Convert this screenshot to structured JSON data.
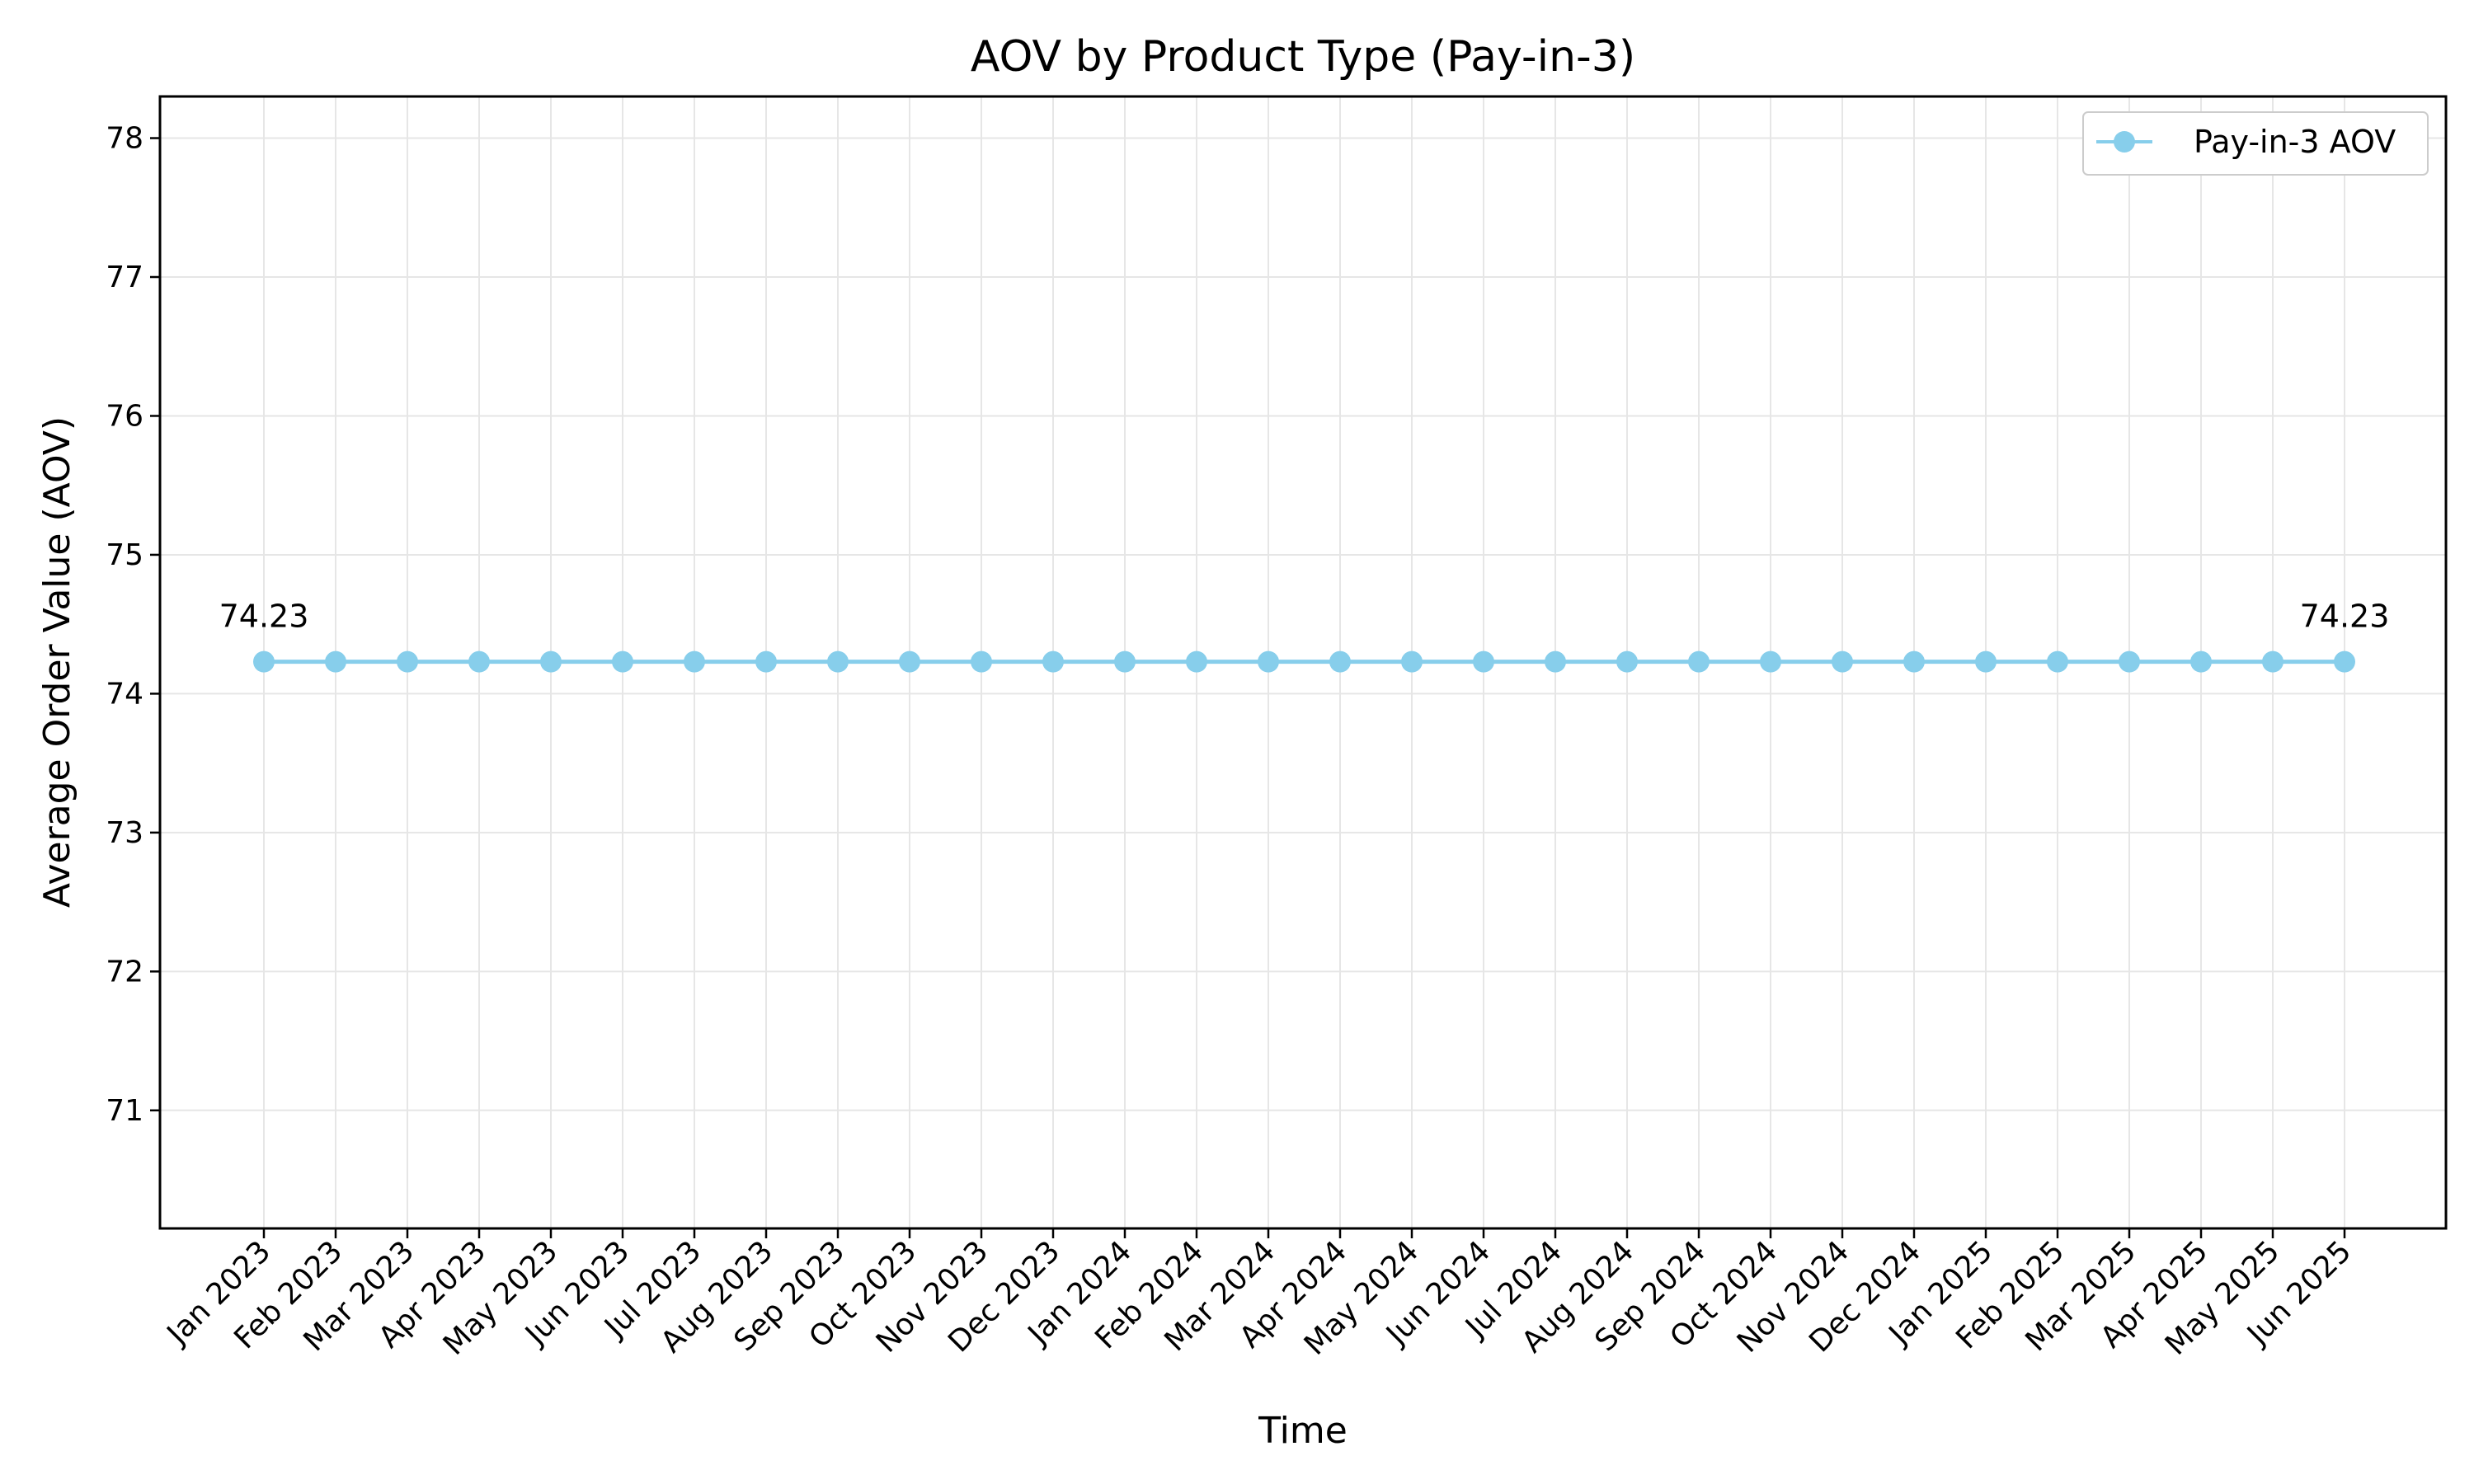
{
  "chart_data": {
    "type": "line",
    "title": "AOV by Product Type (Pay-in-3)",
    "xlabel": "Time",
    "ylabel": "Average Order Value (AOV)",
    "categories": [
      "Jan 2023",
      "Feb 2023",
      "Mar 2023",
      "Apr 2023",
      "May 2023",
      "Jun 2023",
      "Jul 2023",
      "Aug 2023",
      "Sep 2023",
      "Oct 2023",
      "Nov 2023",
      "Dec 2023",
      "Jan 2024",
      "Feb 2024",
      "Mar 2024",
      "Apr 2024",
      "May 2024",
      "Jun 2024",
      "Jul 2024",
      "Aug 2024",
      "Sep 2024",
      "Oct 2024",
      "Nov 2024",
      "Dec 2024",
      "Jan 2025",
      "Feb 2025",
      "Mar 2025",
      "Apr 2025",
      "May 2025",
      "Jun 2025"
    ],
    "series": [
      {
        "name": "Pay-in-3 AOV",
        "color": "#87CEEB",
        "values": [
          74.23,
          74.23,
          74.23,
          74.23,
          74.23,
          74.23,
          74.23,
          74.23,
          74.23,
          74.23,
          74.23,
          74.23,
          74.23,
          74.23,
          74.23,
          74.23,
          74.23,
          74.23,
          74.23,
          74.23,
          74.23,
          74.23,
          74.23,
          74.23,
          74.23,
          74.23,
          74.23,
          74.23,
          74.23,
          74.23
        ]
      }
    ],
    "ylim": [
      70.15,
      78.3
    ],
    "yticks": [
      71,
      72,
      73,
      74,
      75,
      76,
      77,
      78
    ],
    "annotations": [
      {
        "index": 0,
        "text": "74.23"
      },
      {
        "index": 29,
        "text": "74.23"
      }
    ],
    "grid": true,
    "legend_position": "top-right"
  }
}
